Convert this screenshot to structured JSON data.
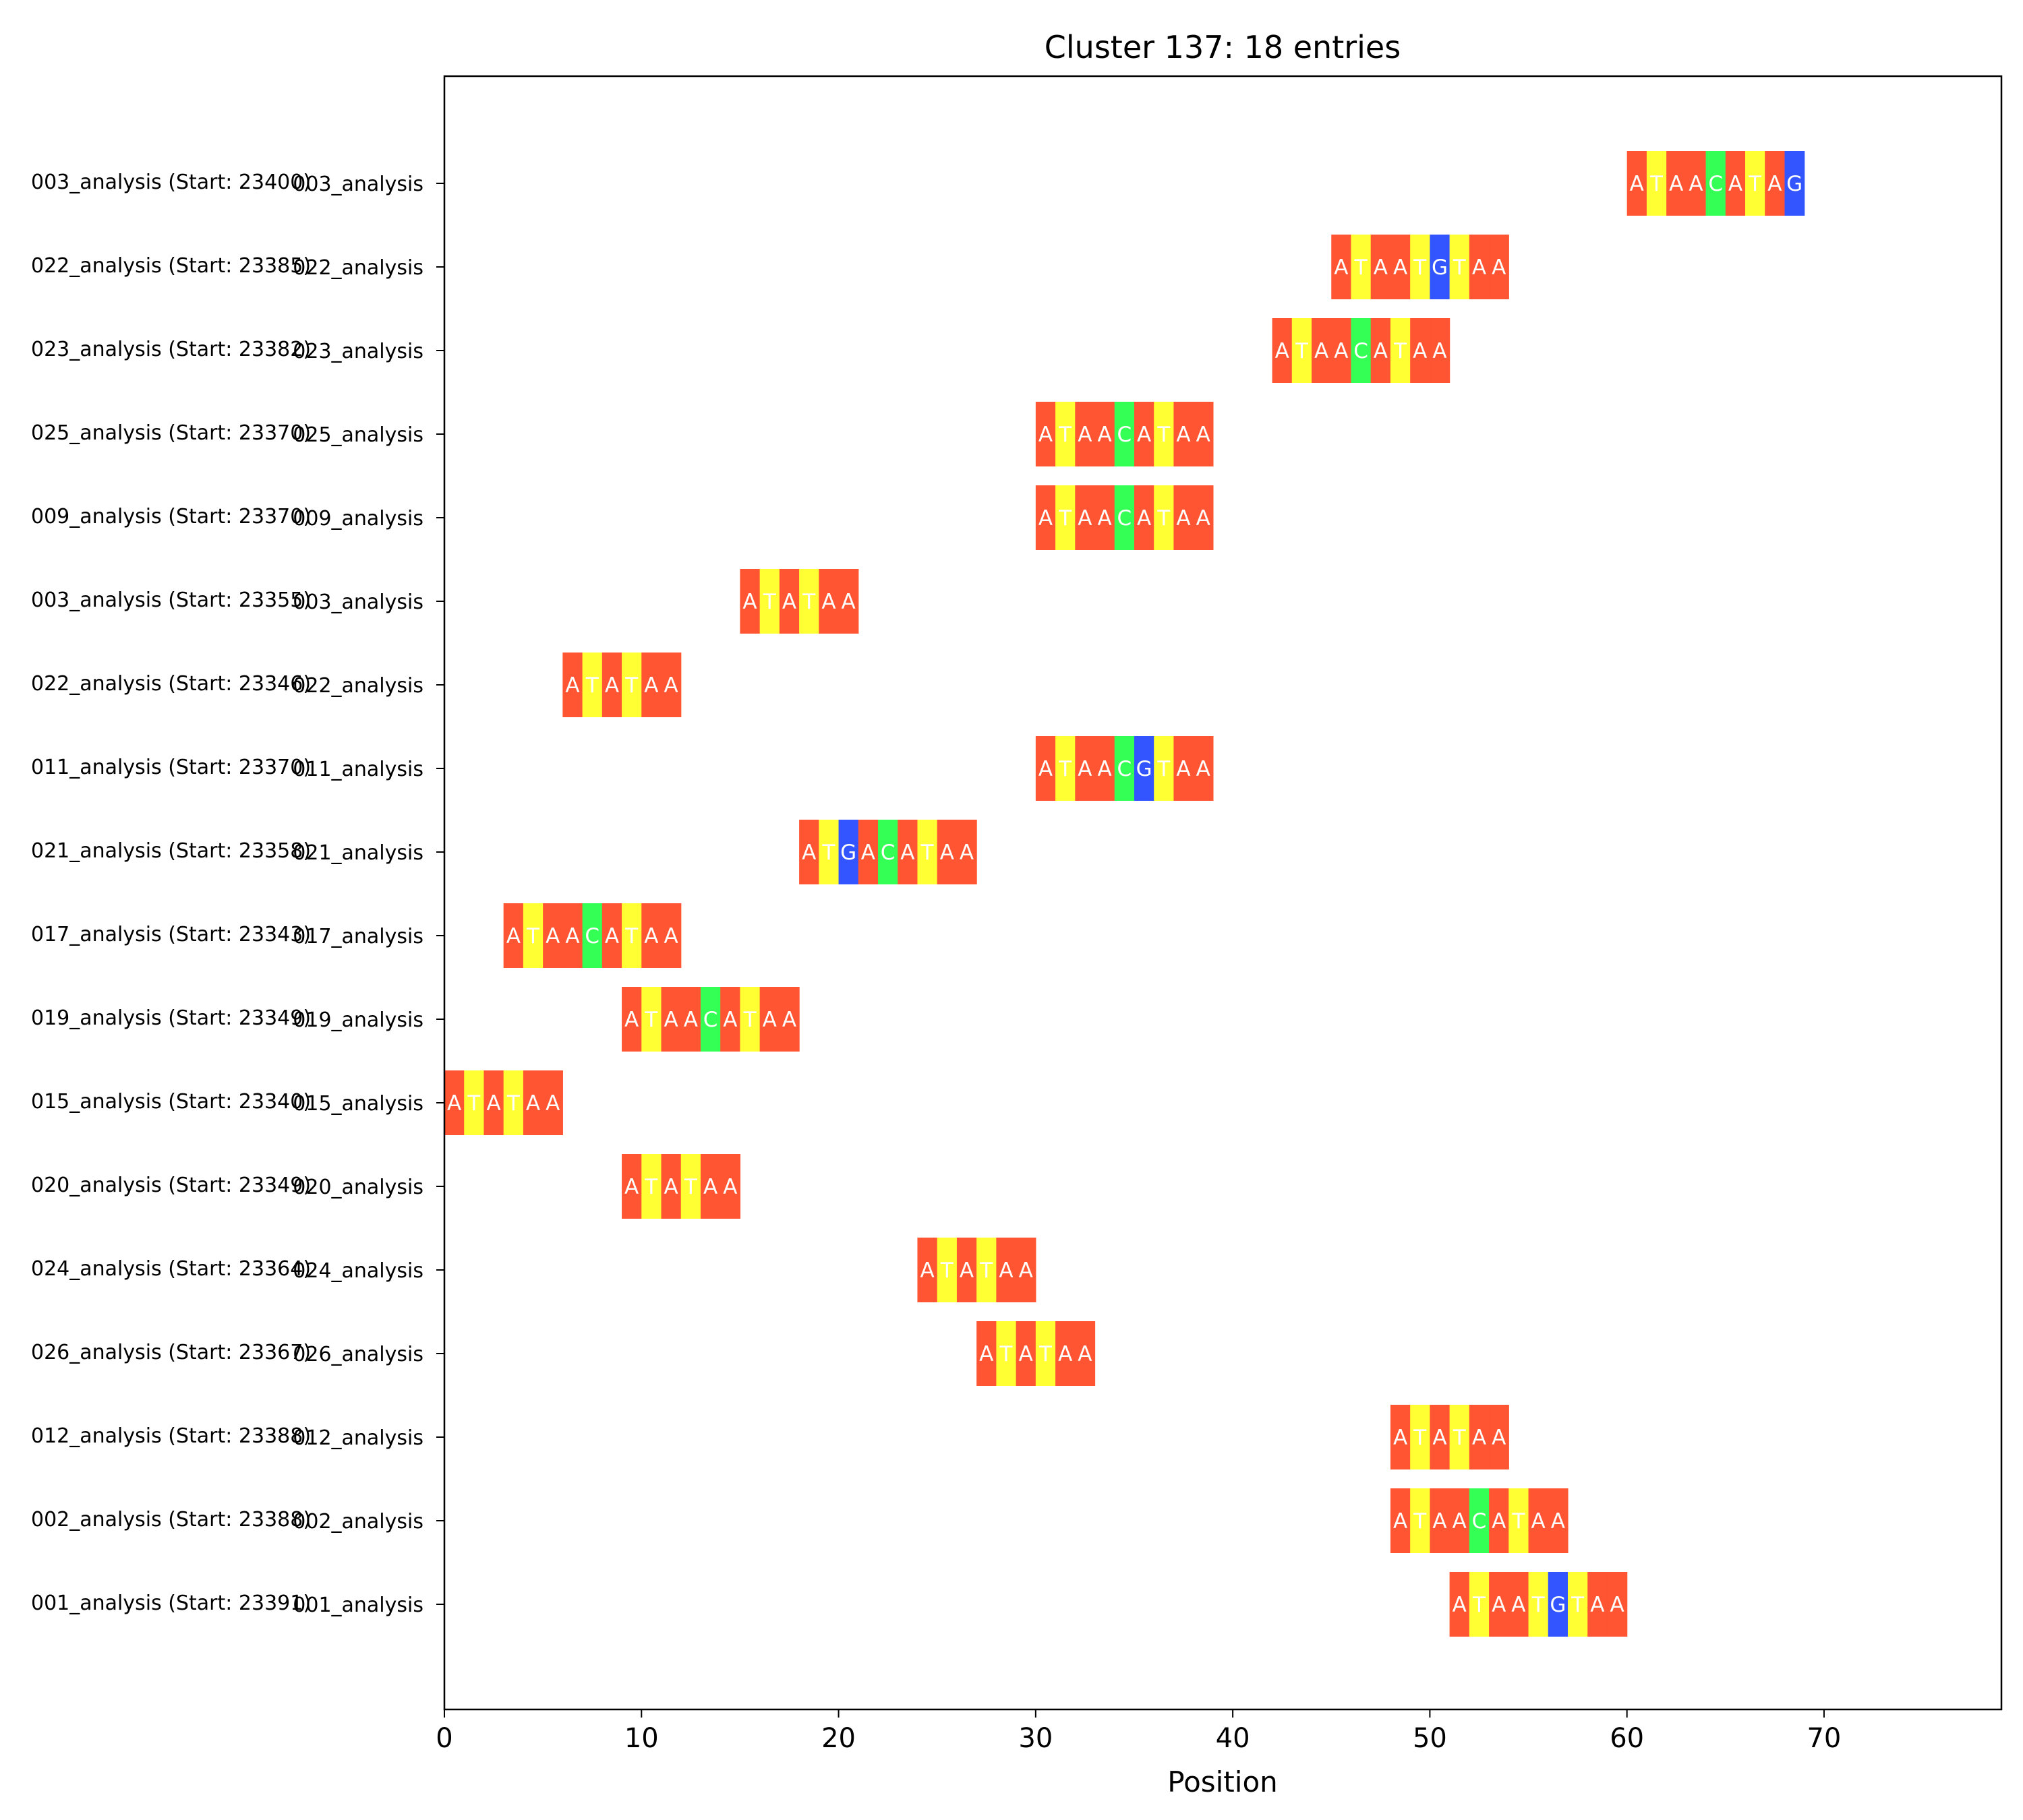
{
  "chart_data": {
    "type": "sequence-alignment",
    "title": "Cluster 137: 18 entries",
    "xlabel": "Position",
    "xlim": [
      0,
      79
    ],
    "xticks": [
      0,
      10,
      20,
      30,
      40,
      50,
      60,
      70
    ],
    "colors": {
      "A": "#ff5533",
      "T": "#ffff33",
      "G": "#3355ff",
      "C": "#33ff55"
    },
    "rows": [
      {
        "label": "003_analysis",
        "source_label": "003_analysis (Start: 23400)",
        "start": 60,
        "sequence": "ATAACATAG"
      },
      {
        "label": "022_analysis",
        "source_label": "022_analysis (Start: 23385)",
        "start": 45,
        "sequence": "ATAATGTAA"
      },
      {
        "label": "023_analysis",
        "source_label": "023_analysis (Start: 23382)",
        "start": 42,
        "sequence": "ATAACATAA"
      },
      {
        "label": "025_analysis",
        "source_label": "025_analysis (Start: 23370)",
        "start": 30,
        "sequence": "ATAACATAA"
      },
      {
        "label": "009_analysis",
        "source_label": "009_analysis (Start: 23370)",
        "start": 30,
        "sequence": "ATAACATAA"
      },
      {
        "label": "003_analysis",
        "source_label": "003_analysis (Start: 23355)",
        "start": 15,
        "sequence": "ATATAA"
      },
      {
        "label": "022_analysis",
        "source_label": "022_analysis (Start: 23346)",
        "start": 6,
        "sequence": "ATATAA"
      },
      {
        "label": "011_analysis",
        "source_label": "011_analysis (Start: 23370)",
        "start": 30,
        "sequence": "ATAACGTAA"
      },
      {
        "label": "021_analysis",
        "source_label": "021_analysis (Start: 23358)",
        "start": 18,
        "sequence": "ATGACATAA"
      },
      {
        "label": "017_analysis",
        "source_label": "017_analysis (Start: 23343)",
        "start": 3,
        "sequence": "ATAACATAA"
      },
      {
        "label": "019_analysis",
        "source_label": "019_analysis (Start: 23349)",
        "start": 9,
        "sequence": "ATAACATAA"
      },
      {
        "label": "015_analysis",
        "source_label": "015_analysis (Start: 23340)",
        "start": 0,
        "sequence": "ATATAA"
      },
      {
        "label": "020_analysis",
        "source_label": "020_analysis (Start: 23349)",
        "start": 9,
        "sequence": "ATATAA"
      },
      {
        "label": "024_analysis",
        "source_label": "024_analysis (Start: 23364)",
        "start": 24,
        "sequence": "ATATAA"
      },
      {
        "label": "026_analysis",
        "source_label": "026_analysis (Start: 23367)",
        "start": 27,
        "sequence": "ATATAA"
      },
      {
        "label": "012_analysis",
        "source_label": "012_analysis (Start: 23388)",
        "start": 48,
        "sequence": "ATATAA"
      },
      {
        "label": "002_analysis",
        "source_label": "002_analysis (Start: 23388)",
        "start": 48,
        "sequence": "ATAACATAA"
      },
      {
        "label": "001_analysis",
        "source_label": "001_analysis (Start: 23391)",
        "start": 51,
        "sequence": "ATAATGTAA"
      }
    ]
  }
}
